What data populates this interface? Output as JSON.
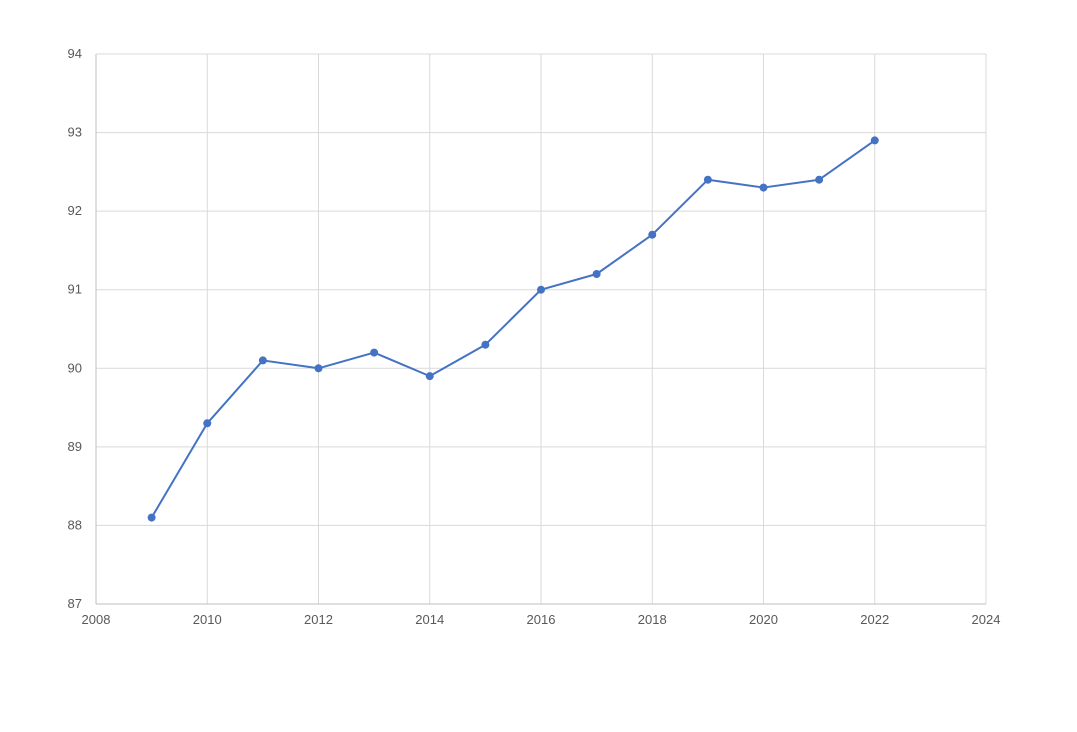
{
  "chart_data": {
    "type": "scatter",
    "title": "",
    "xlabel": "",
    "ylabel": "",
    "xlim": [
      2008,
      2024
    ],
    "ylim": [
      87,
      94
    ],
    "x_ticks": [
      2008,
      2010,
      2012,
      2014,
      2016,
      2018,
      2020,
      2022,
      2024
    ],
    "y_ticks": [
      87,
      88,
      89,
      90,
      91,
      92,
      93,
      94
    ],
    "grid": true,
    "legend": "none",
    "series": [
      {
        "x": [
          2009,
          2010,
          2011,
          2012,
          2013,
          2014,
          2015,
          2016,
          2017,
          2018,
          2019,
          2020,
          2021,
          2022
        ],
        "y": [
          88.1,
          89.3,
          90.1,
          90.0,
          90.2,
          89.9,
          90.3,
          91.0,
          91.2,
          91.7,
          92.4,
          92.3,
          92.4,
          92.9
        ],
        "color": "#4472c4",
        "marker": "circle",
        "line": "straight"
      }
    ],
    "colors": {
      "grid": "#d9d9d9",
      "tick_label": "#595959",
      "line": "#4472c4"
    }
  }
}
